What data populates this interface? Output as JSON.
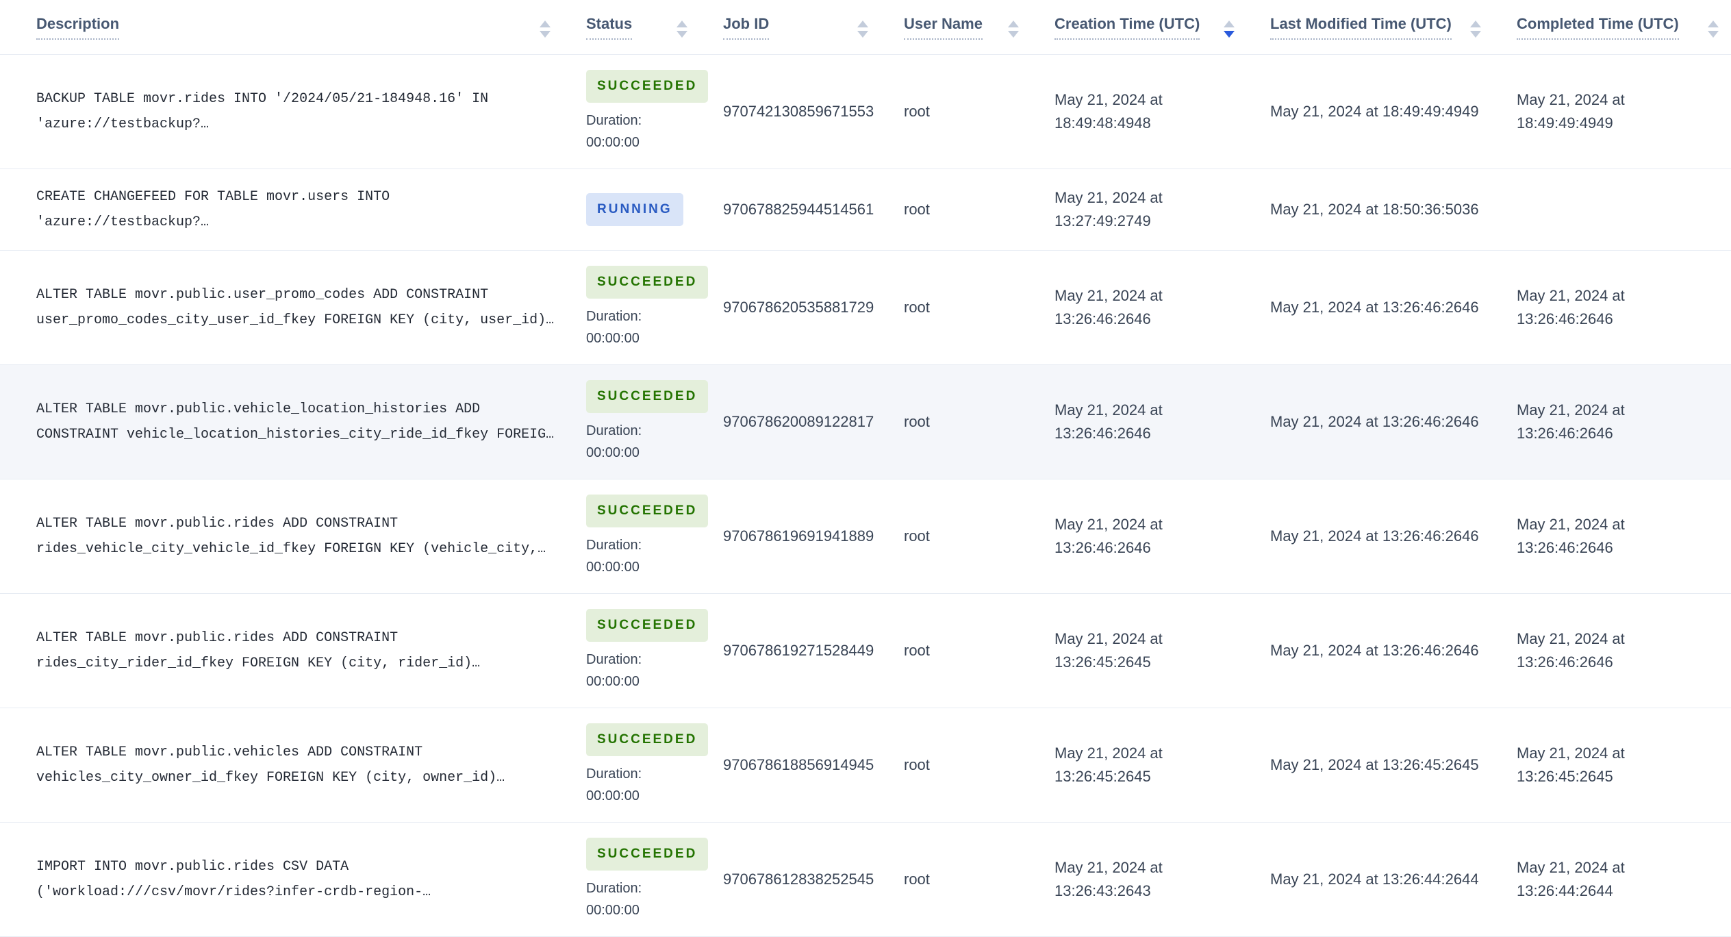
{
  "colors": {
    "accent_sort_active": "#2a5adc",
    "sort_inactive": "#c3ccdb",
    "header_text": "#475872",
    "cell_text": "#394455",
    "description_text": "#242a35",
    "border": "#e7ecf3",
    "row_highlight_bg": "#f4f6fa",
    "badge_succeeded_text": "#237300",
    "badge_succeeded_bg": "#e4efdb",
    "badge_running_text": "#2a5bc2",
    "badge_running_bg": "#d9e4f8"
  },
  "table": {
    "columns": [
      {
        "label": "Description",
        "sort": "none"
      },
      {
        "label": "Status",
        "sort": "none"
      },
      {
        "label": "Job ID",
        "sort": "none"
      },
      {
        "label": "User Name",
        "sort": "none"
      },
      {
        "label": "Creation Time (UTC)",
        "sort": "desc"
      },
      {
        "label": "Last Modified Time (UTC)",
        "sort": "none"
      },
      {
        "label": "Completed Time (UTC)",
        "sort": "none"
      }
    ],
    "rows": [
      {
        "description": "BACKUP TABLE movr.rides INTO '/2024/05/21-184948.16' IN\n'azure://testbackup?…",
        "status": "SUCCEEDED",
        "duration": "Duration:\n00:00:00",
        "job_id": "970742130859671553",
        "user_name": "root",
        "creation_time": "May 21, 2024 at\n18:49:48:4948",
        "last_modified_time": "May 21, 2024 at 18:49:49:4949",
        "completed_time": "May 21, 2024 at\n18:49:49:4949"
      },
      {
        "description": "CREATE CHANGEFEED FOR TABLE movr.users INTO\n'azure://testbackup?…",
        "status": "RUNNING",
        "duration": "",
        "job_id": "970678825944514561",
        "user_name": "root",
        "creation_time": "May 21, 2024 at\n13:27:49:2749",
        "last_modified_time": "May 21, 2024 at 18:50:36:5036",
        "completed_time": ""
      },
      {
        "description": "ALTER TABLE movr.public.user_promo_codes ADD CONSTRAINT\nuser_promo_codes_city_user_id_fkey FOREIGN KEY (city, user_id)…",
        "status": "SUCCEEDED",
        "duration": "Duration:\n00:00:00",
        "job_id": "970678620535881729",
        "user_name": "root",
        "creation_time": "May 21, 2024 at\n13:26:46:2646",
        "last_modified_time": "May 21, 2024 at 13:26:46:2646",
        "completed_time": "May 21, 2024 at\n13:26:46:2646"
      },
      {
        "description": "ALTER TABLE movr.public.vehicle_location_histories ADD\nCONSTRAINT vehicle_location_histories_city_ride_id_fkey FOREIG…",
        "status": "SUCCEEDED",
        "duration": "Duration:\n00:00:00",
        "job_id": "970678620089122817",
        "user_name": "root",
        "creation_time": "May 21, 2024 at\n13:26:46:2646",
        "last_modified_time": "May 21, 2024 at 13:26:46:2646",
        "completed_time": "May 21, 2024 at\n13:26:46:2646",
        "highlighted": true
      },
      {
        "description": "ALTER TABLE movr.public.rides ADD CONSTRAINT\nrides_vehicle_city_vehicle_id_fkey FOREIGN KEY (vehicle_city,…",
        "status": "SUCCEEDED",
        "duration": "Duration:\n00:00:00",
        "job_id": "970678619691941889",
        "user_name": "root",
        "creation_time": "May 21, 2024 at\n13:26:46:2646",
        "last_modified_time": "May 21, 2024 at 13:26:46:2646",
        "completed_time": "May 21, 2024 at\n13:26:46:2646"
      },
      {
        "description": "ALTER TABLE movr.public.rides ADD CONSTRAINT\nrides_city_rider_id_fkey FOREIGN KEY (city, rider_id)…",
        "status": "SUCCEEDED",
        "duration": "Duration:\n00:00:00",
        "job_id": "970678619271528449",
        "user_name": "root",
        "creation_time": "May 21, 2024 at\n13:26:45:2645",
        "last_modified_time": "May 21, 2024 at 13:26:46:2646",
        "completed_time": "May 21, 2024 at\n13:26:46:2646"
      },
      {
        "description": "ALTER TABLE movr.public.vehicles ADD CONSTRAINT\nvehicles_city_owner_id_fkey FOREIGN KEY (city, owner_id)…",
        "status": "SUCCEEDED",
        "duration": "Duration:\n00:00:00",
        "job_id": "970678618856914945",
        "user_name": "root",
        "creation_time": "May 21, 2024 at\n13:26:45:2645",
        "last_modified_time": "May 21, 2024 at 13:26:45:2645",
        "completed_time": "May 21, 2024 at\n13:26:45:2645"
      },
      {
        "description": "IMPORT INTO movr.public.rides CSV DATA\n('workload:///csv/movr/rides?infer-crdb-region-…",
        "status": "SUCCEEDED",
        "duration": "Duration:\n00:00:00",
        "job_id": "970678612838252545",
        "user_name": "root",
        "creation_time": "May 21, 2024 at\n13:26:43:2643",
        "last_modified_time": "May 21, 2024 at 13:26:44:2644",
        "completed_time": "May 21, 2024 at\n13:26:44:2644"
      }
    ]
  }
}
